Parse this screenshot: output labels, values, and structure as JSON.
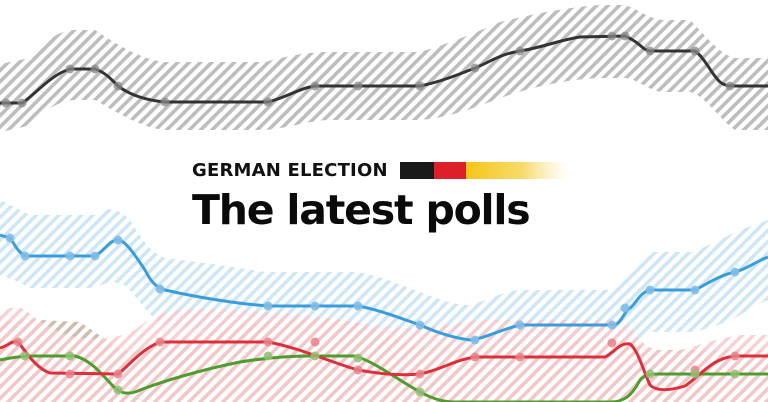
{
  "header": {
    "kicker": "GERMAN ELECTION",
    "headline": "The latest polls"
  },
  "colors": {
    "background": "#ffffff",
    "series_black": "#333333",
    "series_blue": "#3f9fdc",
    "series_red": "#dc2f3a",
    "series_green": "#4f9c2e",
    "flag_black": "#1a1a1a",
    "flag_red": "#dd1f2a",
    "flag_gold": "#f5c518"
  }
}
